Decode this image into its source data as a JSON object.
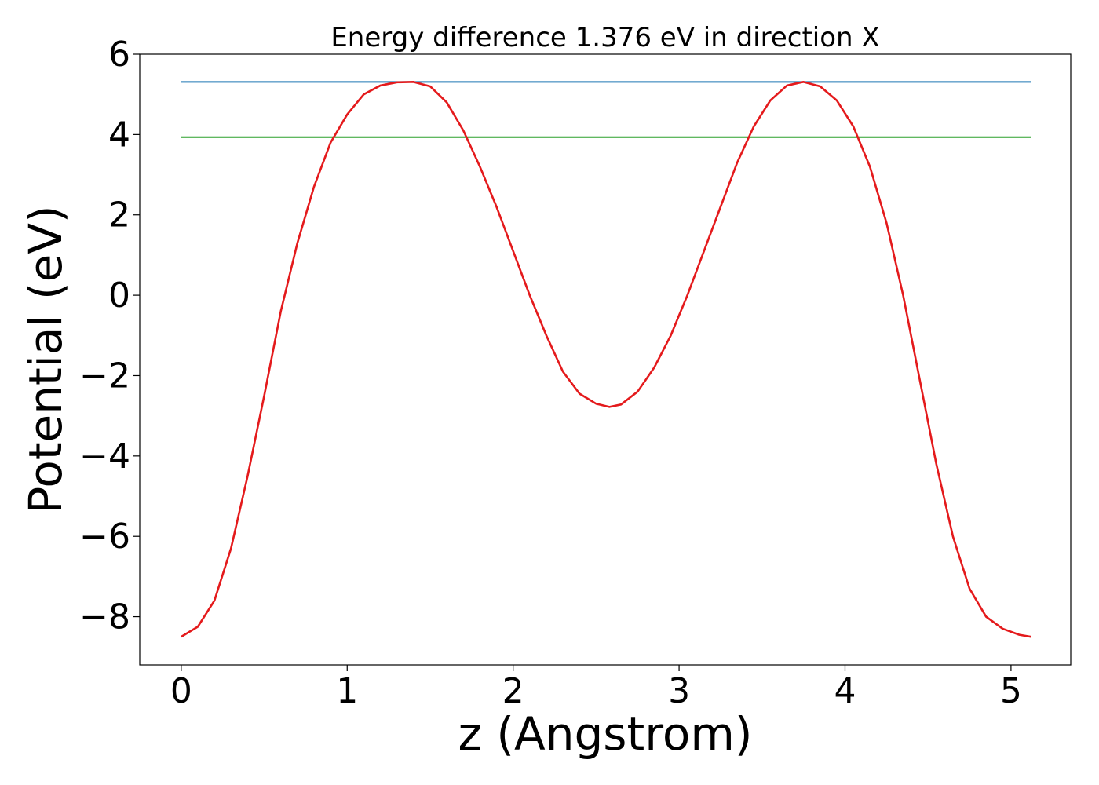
{
  "chart_data": {
    "type": "line",
    "title": "Energy difference 1.376 eV in direction X",
    "xlabel": "z (Angstrom)",
    "ylabel": "Potential (eV)",
    "xlim": [
      -0.25,
      5.36
    ],
    "ylim": [
      -9.2,
      6.0
    ],
    "xticks": [
      0,
      1,
      2,
      3,
      4,
      5
    ],
    "xtick_labels": [
      "0",
      "1",
      "2",
      "3",
      "4",
      "5"
    ],
    "yticks": [
      -8,
      -6,
      -4,
      -2,
      0,
      2,
      4,
      6
    ],
    "ytick_labels": [
      "−8",
      "−6",
      "−4",
      "−2",
      "0",
      "2",
      "4",
      "6"
    ],
    "grid": false,
    "series": [
      {
        "color": "#1f77b4",
        "x": [
          0.0,
          5.12
        ],
        "y": [
          5.31,
          5.31
        ]
      },
      {
        "color": "#2ca02c",
        "x": [
          0.0,
          5.12
        ],
        "y": [
          3.934,
          3.934
        ]
      },
      {
        "color": "#e41a1c",
        "x": [
          0.0,
          0.1,
          0.2,
          0.3,
          0.4,
          0.5,
          0.6,
          0.7,
          0.8,
          0.9,
          1.0,
          1.1,
          1.2,
          1.3,
          1.4,
          1.5,
          1.6,
          1.7,
          1.8,
          1.9,
          2.0,
          2.1,
          2.2,
          2.3,
          2.4,
          2.5,
          2.58,
          2.65,
          2.75,
          2.85,
          2.95,
          3.05,
          3.15,
          3.25,
          3.35,
          3.45,
          3.55,
          3.65,
          3.75,
          3.85,
          3.95,
          4.05,
          4.15,
          4.25,
          4.35,
          4.45,
          4.55,
          4.65,
          4.75,
          4.85,
          4.95,
          5.05,
          5.12
        ],
        "y": [
          -8.5,
          -8.25,
          -7.6,
          -6.3,
          -4.5,
          -2.5,
          -0.4,
          1.3,
          2.7,
          3.8,
          4.5,
          5.0,
          5.22,
          5.3,
          5.31,
          5.2,
          4.8,
          4.1,
          3.2,
          2.2,
          1.1,
          0.0,
          -1.0,
          -1.9,
          -2.45,
          -2.7,
          -2.78,
          -2.72,
          -2.4,
          -1.8,
          -1.0,
          0.0,
          1.1,
          2.2,
          3.3,
          4.2,
          4.85,
          5.22,
          5.31,
          5.2,
          4.85,
          4.2,
          3.2,
          1.8,
          0.0,
          -2.1,
          -4.2,
          -6.0,
          -7.3,
          -8.0,
          -8.3,
          -8.45,
          -8.5
        ]
      }
    ]
  }
}
